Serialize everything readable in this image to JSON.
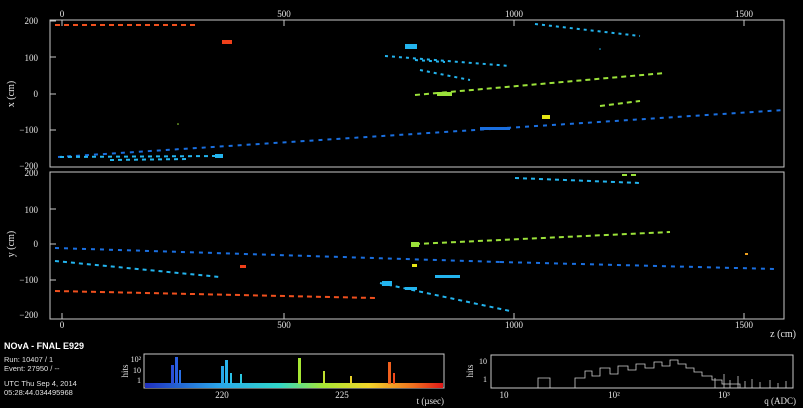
{
  "info": {
    "title": "NOvA - FNAL E929",
    "run": "Run:  10407 / 1",
    "event": "Event: 27950 / --",
    "utc_date": "UTC Thu Sep 4, 2014",
    "utc_time": "05:28:44.034495968"
  },
  "xz_view": {
    "ylabel": "x (cm)",
    "top_ticks": [
      "0",
      "500",
      "1000",
      "1500"
    ],
    "y_ticks": [
      "200",
      "100",
      "0",
      "−100",
      "−200"
    ]
  },
  "yz_view": {
    "ylabel": "y (cm)",
    "xlabel": "z (cm)",
    "bottom_ticks": [
      "0",
      "500",
      "1000",
      "1500"
    ],
    "y_ticks": [
      "200",
      "100",
      "0",
      "−100",
      "−200"
    ]
  },
  "time_hist": {
    "ylabel": "hits",
    "xlabel": "t (µsec)",
    "x_ticks": [
      "220",
      "225"
    ],
    "y_ticks": [
      "10²",
      "10",
      "1"
    ]
  },
  "charge_hist": {
    "ylabel": "hits",
    "xlabel": "q (ADC)",
    "x_ticks": [
      "10",
      "10²",
      "10³"
    ],
    "y_ticks": [
      "10",
      "1"
    ]
  },
  "colors": {
    "background": "#000000",
    "frame": "#c8c8c8",
    "hit_blue": "#1a6fe0",
    "hit_cyan": "#23b4ee",
    "hit_green": "#9be23a",
    "hit_orange": "#f0501e"
  }
}
